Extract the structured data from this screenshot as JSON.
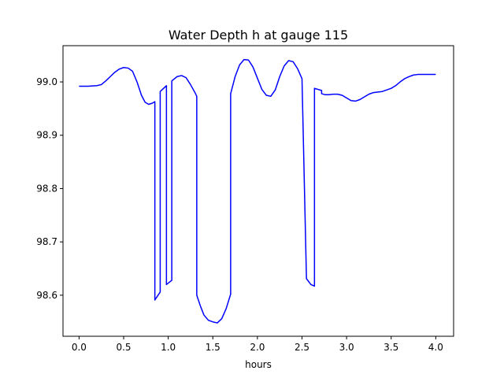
{
  "chart_data": {
    "type": "line",
    "title": "Water Depth h at gauge 115",
    "xlabel": "hours",
    "ylabel": "",
    "xlim": [
      -0.18,
      4.2
    ],
    "ylim": [
      98.523,
      99.068
    ],
    "x_ticks": [
      0.0,
      0.5,
      1.0,
      1.5,
      2.0,
      2.5,
      3.0,
      3.5,
      4.0
    ],
    "x_tick_labels": [
      "0.0",
      "0.5",
      "1.0",
      "1.5",
      "2.0",
      "2.5",
      "3.0",
      "3.5",
      "4.0"
    ],
    "y_ticks": [
      98.6,
      98.7,
      98.8,
      98.9,
      99.0
    ],
    "y_tick_labels": [
      "98.6",
      "98.7",
      "98.8",
      "98.9",
      "99.0"
    ],
    "grid": false,
    "legend": "none",
    "colors": {
      "line": "#0000ff",
      "axes": "#000000",
      "background": "#ffffff"
    },
    "series": [
      {
        "x": [
          0.0,
          0.1,
          0.2,
          0.25,
          0.3,
          0.35,
          0.4,
          0.45,
          0.5,
          0.55,
          0.6,
          0.65,
          0.7,
          0.74,
          0.78,
          0.82,
          0.85,
          0.85,
          0.91,
          0.91,
          0.98,
          0.98,
          1.04,
          1.04,
          1.1,
          1.15,
          1.2,
          1.25,
          1.3,
          1.32,
          1.32,
          1.36,
          1.4,
          1.45,
          1.5,
          1.55,
          1.6,
          1.65,
          1.7,
          1.7,
          1.75,
          1.8,
          1.85,
          1.9,
          1.95,
          2.0,
          2.05,
          2.1,
          2.15,
          2.2,
          2.25,
          2.3,
          2.35,
          2.4,
          2.45,
          2.5,
          2.55,
          2.6,
          2.64,
          2.64,
          2.72,
          2.72,
          2.76,
          2.8,
          2.85,
          2.9,
          2.95,
          3.0,
          3.05,
          3.1,
          3.15,
          3.2,
          3.25,
          3.3,
          3.35,
          3.4,
          3.45,
          3.5,
          3.55,
          3.6,
          3.65,
          3.7,
          3.75,
          3.8,
          3.85,
          3.9,
          3.95,
          4.0
        ],
        "y": [
          98.992,
          98.992,
          98.993,
          98.995,
          99.002,
          99.01,
          99.018,
          99.024,
          99.027,
          99.026,
          99.02,
          99.0,
          98.975,
          98.962,
          98.958,
          98.96,
          98.963,
          98.591,
          98.606,
          98.982,
          98.993,
          98.62,
          98.628,
          99.002,
          99.01,
          99.012,
          99.008,
          98.995,
          98.98,
          98.973,
          98.6,
          98.58,
          98.563,
          98.553,
          98.55,
          98.548,
          98.556,
          98.575,
          98.602,
          98.978,
          99.01,
          99.032,
          99.042,
          99.041,
          99.028,
          99.007,
          98.986,
          98.975,
          98.973,
          98.985,
          99.01,
          99.03,
          99.04,
          99.038,
          99.025,
          99.006,
          98.631,
          98.62,
          98.617,
          98.988,
          98.984,
          98.978,
          98.976,
          98.976,
          98.977,
          98.977,
          98.975,
          98.97,
          98.965,
          98.964,
          98.967,
          98.972,
          98.977,
          98.98,
          98.981,
          98.982,
          98.985,
          98.988,
          98.993,
          99.0,
          99.006,
          99.01,
          99.013,
          99.014,
          99.014,
          99.014,
          99.014,
          99.014
        ]
      }
    ]
  }
}
